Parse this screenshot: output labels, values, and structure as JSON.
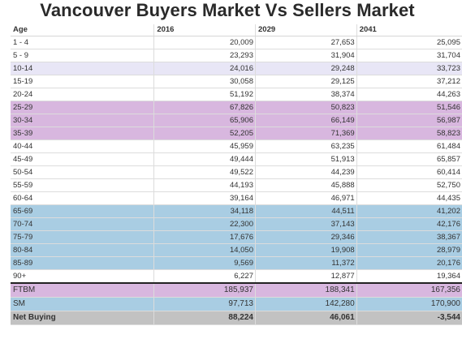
{
  "title": "Vancouver Buyers Market Vs Sellers Market",
  "headers": [
    "Age",
    "2016",
    "2029",
    "2041"
  ],
  "rows": [
    {
      "label": "1 - 4",
      "v2016": "20,009",
      "v2029": "27,653",
      "v2041": "25,095",
      "style": "white"
    },
    {
      "label": "5 - 9",
      "v2016": "23,293",
      "v2029": "31,904",
      "v2041": "31,704",
      "style": "white"
    },
    {
      "label": "10-14",
      "v2016": "24,016",
      "v2029": "29,248",
      "v2041": "33,723",
      "style": "lav"
    },
    {
      "label": "15-19",
      "v2016": "30,058",
      "v2029": "29,125",
      "v2041": "37,212",
      "style": "white"
    },
    {
      "label": "20-24",
      "v2016": "51,192",
      "v2029": "38,374",
      "v2041": "44,263",
      "style": "white"
    },
    {
      "label": "25-29",
      "v2016": "67,826",
      "v2029": "50,823",
      "v2041": "51,546",
      "style": "purple"
    },
    {
      "label": "30-34",
      "v2016": "65,906",
      "v2029": "66,149",
      "v2041": "56,987",
      "style": "purple"
    },
    {
      "label": "35-39",
      "v2016": "52,205",
      "v2029": "71,369",
      "v2041": "58,823",
      "style": "purple"
    },
    {
      "label": "40-44",
      "v2016": "45,959",
      "v2029": "63,235",
      "v2041": "61,484",
      "style": "white"
    },
    {
      "label": "45-49",
      "v2016": "49,444",
      "v2029": "51,913",
      "v2041": "65,857",
      "style": "white"
    },
    {
      "label": "50-54",
      "v2016": "49,522",
      "v2029": "44,239",
      "v2041": "60,414",
      "style": "white"
    },
    {
      "label": "55-59",
      "v2016": "44,193",
      "v2029": "45,888",
      "v2041": "52,750",
      "style": "white"
    },
    {
      "label": "60-64",
      "v2016": "39,164",
      "v2029": "46,971",
      "v2041": "44,435",
      "style": "white"
    },
    {
      "label": "65-69",
      "v2016": "34,118",
      "v2029": "44,511",
      "v2041": "41,202",
      "style": "blue"
    },
    {
      "label": "70-74",
      "v2016": "22,300",
      "v2029": "37,143",
      "v2041": "42,176",
      "style": "blue"
    },
    {
      "label": "75-79",
      "v2016": "17,676",
      "v2029": "29,346",
      "v2041": "38,367",
      "style": "blue"
    },
    {
      "label": "80-84",
      "v2016": "14,050",
      "v2029": "19,908",
      "v2041": "28,979",
      "style": "blue"
    },
    {
      "label": "85-89",
      "v2016": "9,569",
      "v2029": "11,372",
      "v2041": "20,176",
      "style": "blue"
    },
    {
      "label": "90+",
      "v2016": "6,227",
      "v2029": "12,877",
      "v2041": "19,364",
      "style": "white"
    }
  ],
  "totals": [
    {
      "label": "FTBM",
      "v2016": "185,937",
      "v2029": "188,341",
      "v2041": "167,356",
      "style": "purple"
    },
    {
      "label": "SM",
      "v2016": "97,713",
      "v2029": "142,280",
      "v2041": "170,900",
      "style": "blue"
    },
    {
      "label": "Net Buying",
      "v2016": "88,224",
      "v2029": "46,061",
      "v2041": "-3,544",
      "style": "gray"
    }
  ]
}
